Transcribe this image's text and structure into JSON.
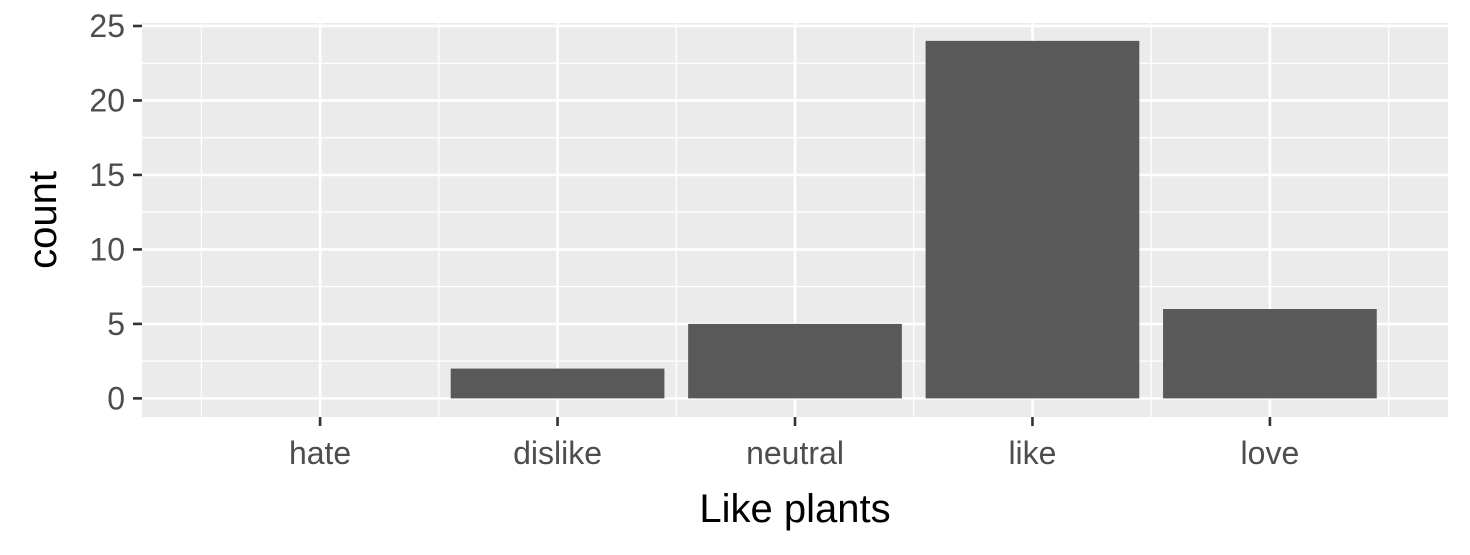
{
  "chart_data": {
    "type": "bar",
    "categories": [
      "hate",
      "dislike",
      "neutral",
      "like",
      "love"
    ],
    "values": [
      0,
      2,
      5,
      24,
      6
    ],
    "xlabel": "Like plants",
    "ylabel": "count",
    "ylim": [
      -1.25,
      25.2
    ],
    "yticks": [
      0,
      5,
      10,
      15,
      20,
      25
    ],
    "y_minor_ticks": [
      2.5,
      7.5,
      12.5,
      17.5,
      22.5
    ],
    "grid": true,
    "colors": {
      "panel_background": "#ebebeb",
      "grid_major": "#ffffff",
      "grid_minor": "#ffffff",
      "bar_fill": "#595959",
      "tick_color": "#333333"
    }
  }
}
